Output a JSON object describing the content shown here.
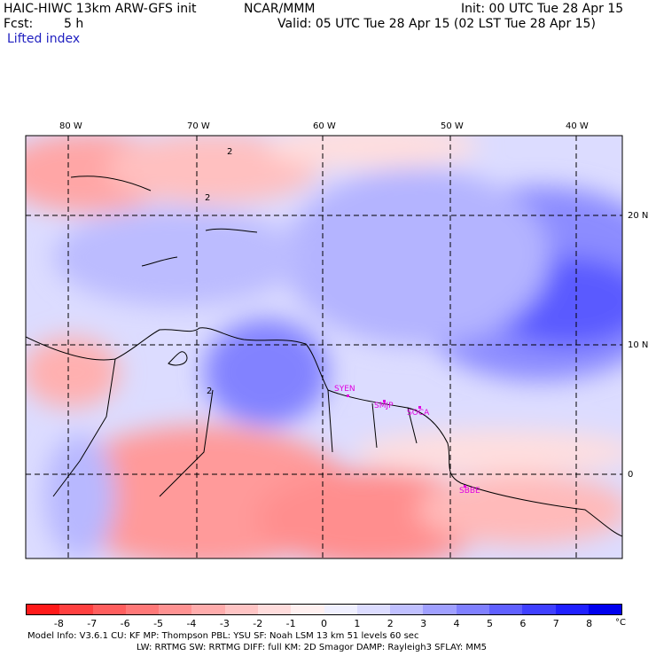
{
  "header": {
    "title": "HAIC-HIWC 13km ARW-GFS init",
    "org": "NCAR/MMM",
    "init": "Init: 00 UTC Tue 28 Apr 15",
    "fcst_label": "Fcst:",
    "fcst_value": "5 h",
    "valid": "Valid: 05 UTC Tue 28 Apr 15 (02 LST Tue 28 Apr 15)",
    "field": "Lifted index"
  },
  "map": {
    "lon_labels": [
      "80 W",
      "70 W",
      "60 W",
      "50 W",
      "40 W"
    ],
    "lat_labels": [
      "20 N",
      "10 N",
      "0"
    ],
    "contour_label": "2",
    "stations": [
      "SYEN",
      "SMJP",
      "SOCA",
      "SBBE"
    ],
    "colors": {
      "station": "#e000e0",
      "grid": "#000000"
    }
  },
  "colorbar": {
    "labels": [
      "-8",
      "-7",
      "-6",
      "-5",
      "-4",
      "-3",
      "-2",
      "-1",
      "0",
      "1",
      "2",
      "3",
      "4",
      "5",
      "6",
      "7",
      "8"
    ],
    "unit": "°C",
    "colors": [
      "#ff1a1a",
      "#ff4040",
      "#ff5e5e",
      "#ff7878",
      "#ff9292",
      "#ffacac",
      "#ffc4c4",
      "#ffdcdc",
      "#fff0f0",
      "#f0f0ff",
      "#dcdcff",
      "#c0c0ff",
      "#a0a0ff",
      "#8080ff",
      "#6060ff",
      "#4040ff",
      "#2020ff",
      "#0000ee"
    ]
  },
  "footer": {
    "line1": [
      "Model Info: V3.6.1",
      "CU: KF",
      "MP: Thompson",
      "PBL: YSU",
      "SF: Noah LSM",
      "13 km",
      "51 levels",
      "60 sec"
    ],
    "line2": [
      "LW: RRTMG",
      "SW: RRTMG",
      "DIFF: full",
      "KM: 2D Smagor",
      "DAMP: Rayleigh3",
      "SFLAY: MM5"
    ]
  }
}
